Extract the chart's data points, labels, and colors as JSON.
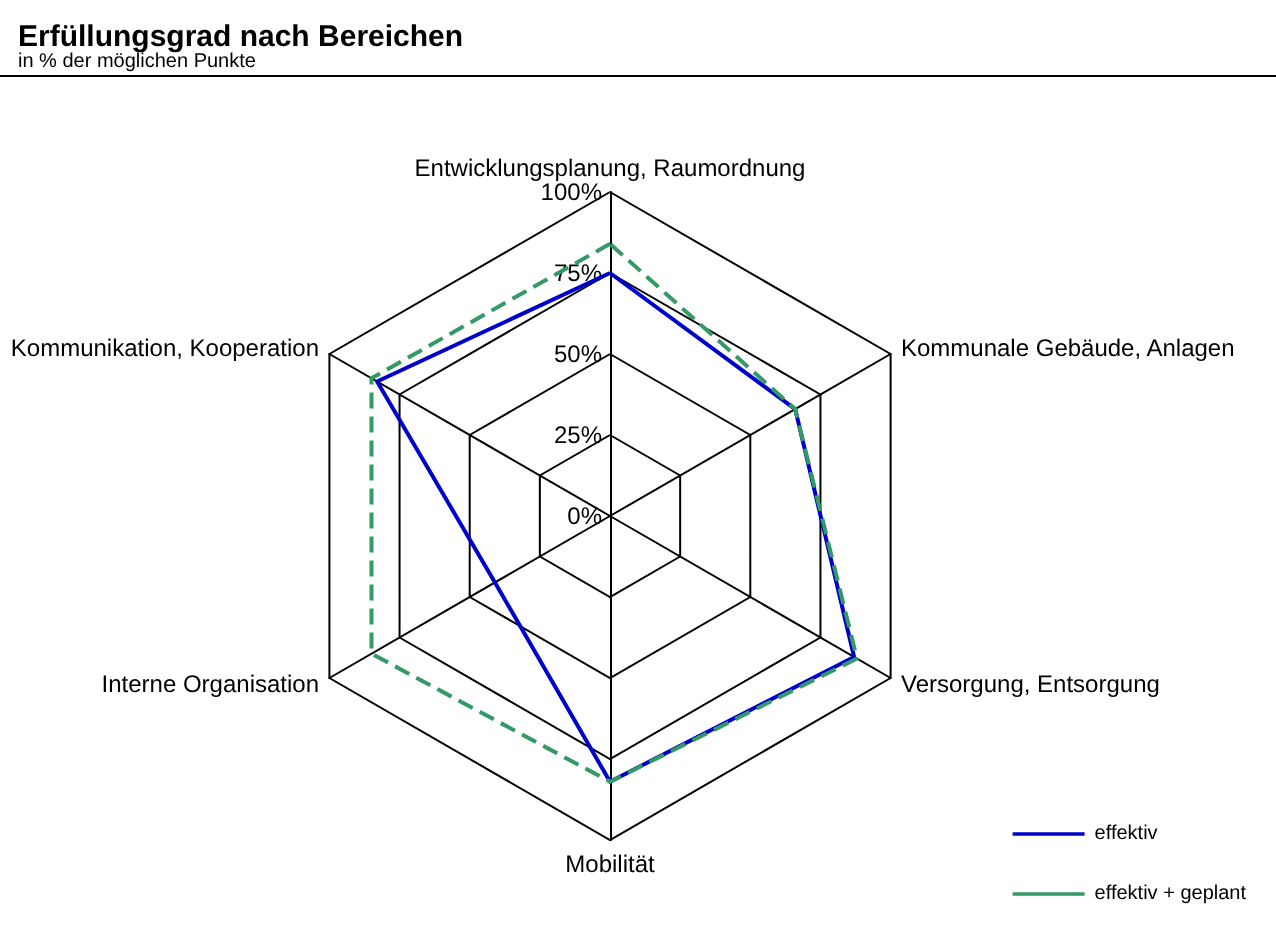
{
  "chart_data": {
    "type": "radar",
    "title": "Erfüllungsgrad nach Bereichen",
    "subtitle": "in % der möglichen Punkte",
    "categories": [
      "Entwicklungsplanung, Raumordnung",
      "Kommunale Gebäude, Anlagen",
      "Versorgung, Entsorgung",
      "Mobilität",
      "Interne Organisation",
      "Kommunikation, Kooperation"
    ],
    "series": [
      {
        "name": "effektiv",
        "color": "#0000cc",
        "line_style": "solid",
        "values": [
          75,
          66,
          87,
          82,
          41,
          83
        ]
      },
      {
        "name": "effektiv + geplant",
        "color": "#339966",
        "line_style": "dashed",
        "values": [
          84,
          66,
          88,
          82,
          85,
          85
        ]
      }
    ],
    "ylim": [
      0,
      100
    ],
    "yticks": [
      {
        "value": 0,
        "label": "0%"
      },
      {
        "value": 25,
        "label": "25%"
      },
      {
        "value": 50,
        "label": "50%"
      },
      {
        "value": 75,
        "label": "75%"
      },
      {
        "value": 100,
        "label": "100%"
      }
    ],
    "legend": "bottom right",
    "marker": "none"
  }
}
